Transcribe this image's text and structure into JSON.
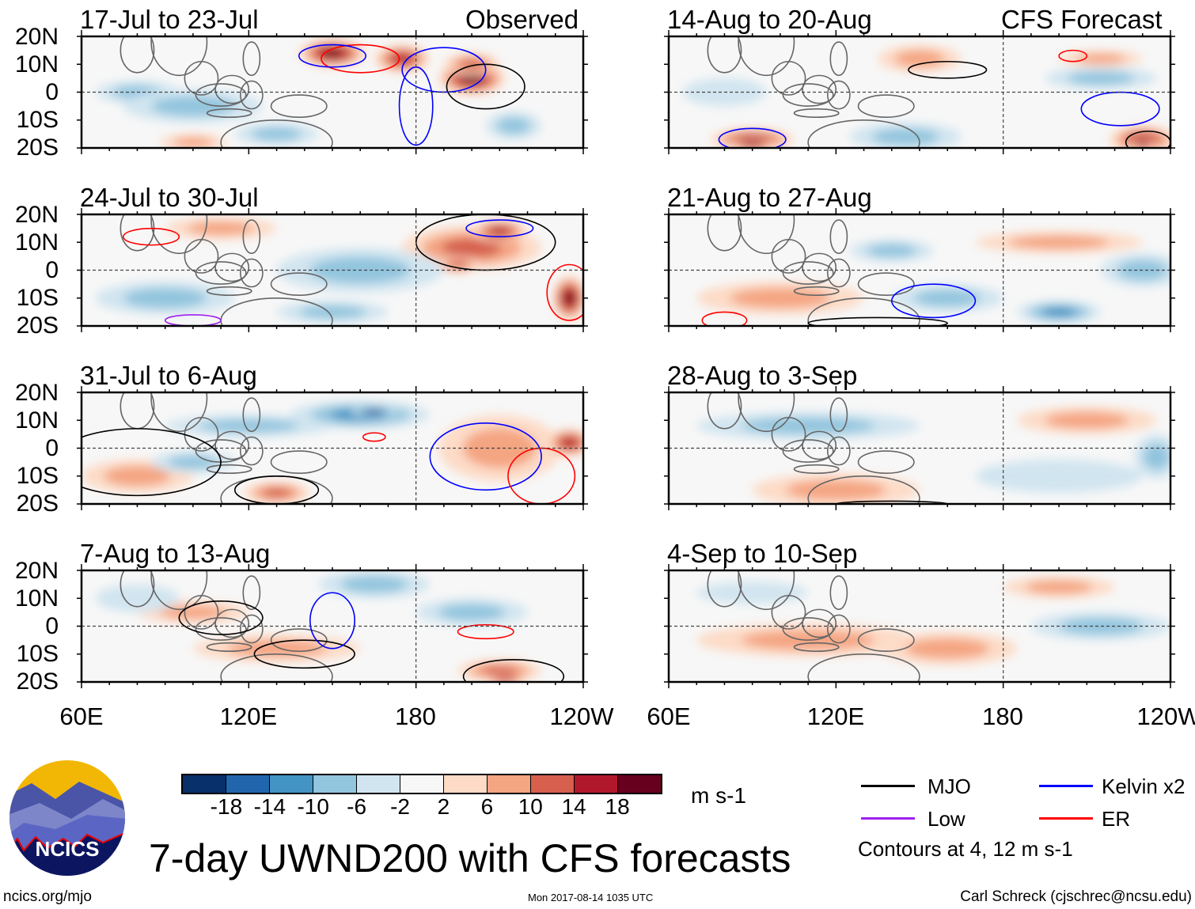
{
  "header": {
    "observed_label": "Observed",
    "forecast_label": "CFS Forecast"
  },
  "lat_labels": [
    "20N",
    "10N",
    "0",
    "10S",
    "20S"
  ],
  "lon_labels": [
    "60E",
    "120E",
    "180",
    "120W"
  ],
  "colorbar": {
    "labels": [
      "-18",
      "-14",
      "-10",
      "-6",
      "-2",
      "2",
      "6",
      "10",
      "14",
      "18"
    ],
    "colors": [
      "#08306b",
      "#2166ac",
      "#4393c3",
      "#92c5de",
      "#d1e5f0",
      "#f7f7f7",
      "#fddbc7",
      "#f4a582",
      "#d6604d",
      "#b2182b",
      "#67001f"
    ],
    "units": "m s-1"
  },
  "legend": {
    "items": [
      {
        "label": "MJO",
        "color": "#000000"
      },
      {
        "label": "Kelvin x2",
        "color": "#0000ff"
      },
      {
        "label": "Low",
        "color": "#a020f0"
      },
      {
        "label": "ER",
        "color": "#ff0000"
      }
    ],
    "contour_note": "Contours at 4, 12 m s-1"
  },
  "title": "7-day UWND200 with CFS forecasts",
  "footer": {
    "left": "ncics.org/mjo",
    "center": "Mon 2017-08-14 1035 UTC",
    "right": "Carl Schreck (cjschrec@ncsu.edu)"
  },
  "logo": {
    "text": "NCICS"
  },
  "chart_data": {
    "type": "heatmap",
    "variable": "200-hPa zonal wind anomaly (7-day)",
    "lon_range": [
      60,
      240
    ],
    "lat_range": [
      -20,
      20
    ],
    "panels": [
      {
        "title": "17-Jul to 23-Jul",
        "kind": "observed",
        "anomalies": [
          [
            150,
            14,
            12,
            5,
            15
          ],
          [
            175,
            12,
            10,
            5,
            12
          ],
          [
            200,
            5,
            12,
            6,
            18
          ],
          [
            200,
            10,
            10,
            4,
            10
          ],
          [
            80,
            0,
            15,
            4,
            -6
          ],
          [
            100,
            -5,
            25,
            6,
            -3
          ],
          [
            130,
            -15,
            15,
            4,
            -3
          ],
          [
            100,
            -18,
            12,
            3,
            6
          ],
          [
            215,
            -12,
            10,
            5,
            -4
          ]
        ],
        "contours": [
          [
            160,
            12,
            14,
            5,
            "#ff0000"
          ],
          [
            150,
            13,
            12,
            4,
            "#0000ff"
          ],
          [
            190,
            8,
            15,
            8,
            "#0000ff"
          ],
          [
            205,
            2,
            14,
            8,
            "#000000"
          ],
          [
            180,
            -5,
            6,
            14,
            "#0000ff"
          ]
        ]
      },
      {
        "title": "24-Jul to 30-Jul",
        "kind": "observed",
        "anomalies": [
          [
            200,
            8,
            25,
            8,
            10
          ],
          [
            210,
            14,
            10,
            4,
            14
          ],
          [
            235,
            -10,
            6,
            8,
            18
          ],
          [
            195,
            2,
            8,
            3,
            10
          ],
          [
            110,
            15,
            20,
            4,
            6
          ],
          [
            160,
            0,
            30,
            8,
            -3
          ],
          [
            90,
            -10,
            25,
            6,
            -3
          ],
          [
            150,
            -15,
            20,
            4,
            -3
          ]
        ],
        "contours": [
          [
            205,
            10,
            25,
            10,
            "#000000"
          ],
          [
            210,
            15,
            12,
            3,
            "#0000ff"
          ],
          [
            235,
            -8,
            8,
            10,
            "#ff0000"
          ],
          [
            100,
            -18,
            10,
            2,
            "#a020f0"
          ],
          [
            85,
            12,
            10,
            3,
            "#ff0000"
          ]
        ]
      },
      {
        "title": "31-Jul to 6-Aug",
        "kind": "observed",
        "anomalies": [
          [
            160,
            12,
            25,
            5,
            -10
          ],
          [
            165,
            13,
            8,
            2,
            -18
          ],
          [
            210,
            0,
            22,
            12,
            6
          ],
          [
            235,
            2,
            8,
            5,
            12
          ],
          [
            130,
            -16,
            12,
            4,
            10
          ],
          [
            80,
            -10,
            20,
            6,
            3
          ],
          [
            120,
            8,
            30,
            4,
            -3
          ],
          [
            100,
            -5,
            15,
            4,
            -3
          ]
        ],
        "contours": [
          [
            80,
            -5,
            30,
            12,
            "#000000"
          ],
          [
            130,
            -15,
            15,
            5,
            "#000000"
          ],
          [
            205,
            -3,
            20,
            12,
            "#0000ff"
          ],
          [
            225,
            -10,
            12,
            10,
            "#ff0000"
          ],
          [
            165,
            4,
            4,
            1.5,
            "#ff0000"
          ]
        ]
      },
      {
        "title": "7-Aug to 13-Aug",
        "kind": "observed",
        "anomalies": [
          [
            165,
            15,
            20,
            5,
            -6
          ],
          [
            210,
            -16,
            15,
            4,
            10
          ],
          [
            212,
            -19,
            8,
            2,
            14
          ],
          [
            130,
            -8,
            30,
            5,
            3
          ],
          [
            100,
            5,
            20,
            4,
            3
          ],
          [
            200,
            5,
            20,
            5,
            -3
          ],
          [
            80,
            10,
            15,
            5,
            -2
          ]
        ],
        "contours": [
          [
            110,
            3,
            15,
            6,
            "#000000"
          ],
          [
            140,
            -10,
            18,
            5,
            "#000000"
          ],
          [
            215,
            -18,
            18,
            6,
            "#000000"
          ],
          [
            150,
            2,
            8,
            10,
            "#0000ff"
          ],
          [
            205,
            -2,
            10,
            2.5,
            "#ff0000"
          ]
        ]
      },
      {
        "title": "14-Aug to 20-Aug",
        "kind": "forecast",
        "anomalies": [
          [
            90,
            -17,
            15,
            4,
            12
          ],
          [
            90,
            -19,
            8,
            2,
            18
          ],
          [
            145,
            -16,
            20,
            5,
            -6
          ],
          [
            230,
            -17,
            12,
            5,
            12
          ],
          [
            230,
            -19,
            5,
            2,
            18
          ],
          [
            150,
            12,
            15,
            5,
            3
          ],
          [
            215,
            5,
            20,
            4,
            -3
          ],
          [
            80,
            0,
            15,
            5,
            -2
          ],
          [
            215,
            12,
            15,
            3,
            3
          ]
        ],
        "contours": [
          [
            160,
            8,
            14,
            3,
            "#000000"
          ],
          [
            222,
            -6,
            14,
            6,
            "#0000ff"
          ],
          [
            90,
            -17,
            12,
            4,
            "#0000ff"
          ],
          [
            232,
            -18,
            8,
            4,
            "#000000"
          ],
          [
            205,
            13,
            5,
            2,
            "#ff0000"
          ]
        ]
      },
      {
        "title": "21-Aug to 27-Aug",
        "kind": "forecast",
        "anomalies": [
          [
            200,
            -15,
            15,
            4,
            -10
          ],
          [
            230,
            0,
            15,
            6,
            -6
          ],
          [
            140,
            7,
            15,
            4,
            -3
          ],
          [
            100,
            -10,
            30,
            6,
            3
          ],
          [
            200,
            10,
            30,
            4,
            3
          ],
          [
            160,
            -10,
            20,
            5,
            -3
          ]
        ],
        "contours": [
          [
            155,
            -11,
            15,
            6,
            "#0000ff"
          ],
          [
            80,
            -18,
            8,
            3,
            "#ff0000"
          ],
          [
            135,
            -19,
            25,
            2,
            "#000000"
          ]
        ]
      },
      {
        "title": "28-Aug to 3-Sep",
        "kind": "forecast",
        "anomalies": [
          [
            110,
            8,
            40,
            5,
            -6
          ],
          [
            235,
            -3,
            8,
            8,
            -6
          ],
          [
            120,
            -15,
            30,
            6,
            3
          ],
          [
            200,
            -10,
            30,
            6,
            -2
          ],
          [
            210,
            10,
            25,
            5,
            3
          ]
        ],
        "contours": [
          [
            140,
            -20,
            20,
            1,
            "#000000"
          ]
        ]
      },
      {
        "title": "4-Sep to 10-Sep",
        "kind": "forecast",
        "anomalies": [
          [
            110,
            -5,
            40,
            6,
            3
          ],
          [
            160,
            -8,
            25,
            6,
            3
          ],
          [
            215,
            0,
            25,
            5,
            -3
          ],
          [
            90,
            12,
            20,
            4,
            -2
          ],
          [
            200,
            14,
            20,
            4,
            3
          ]
        ],
        "contours": []
      }
    ]
  }
}
